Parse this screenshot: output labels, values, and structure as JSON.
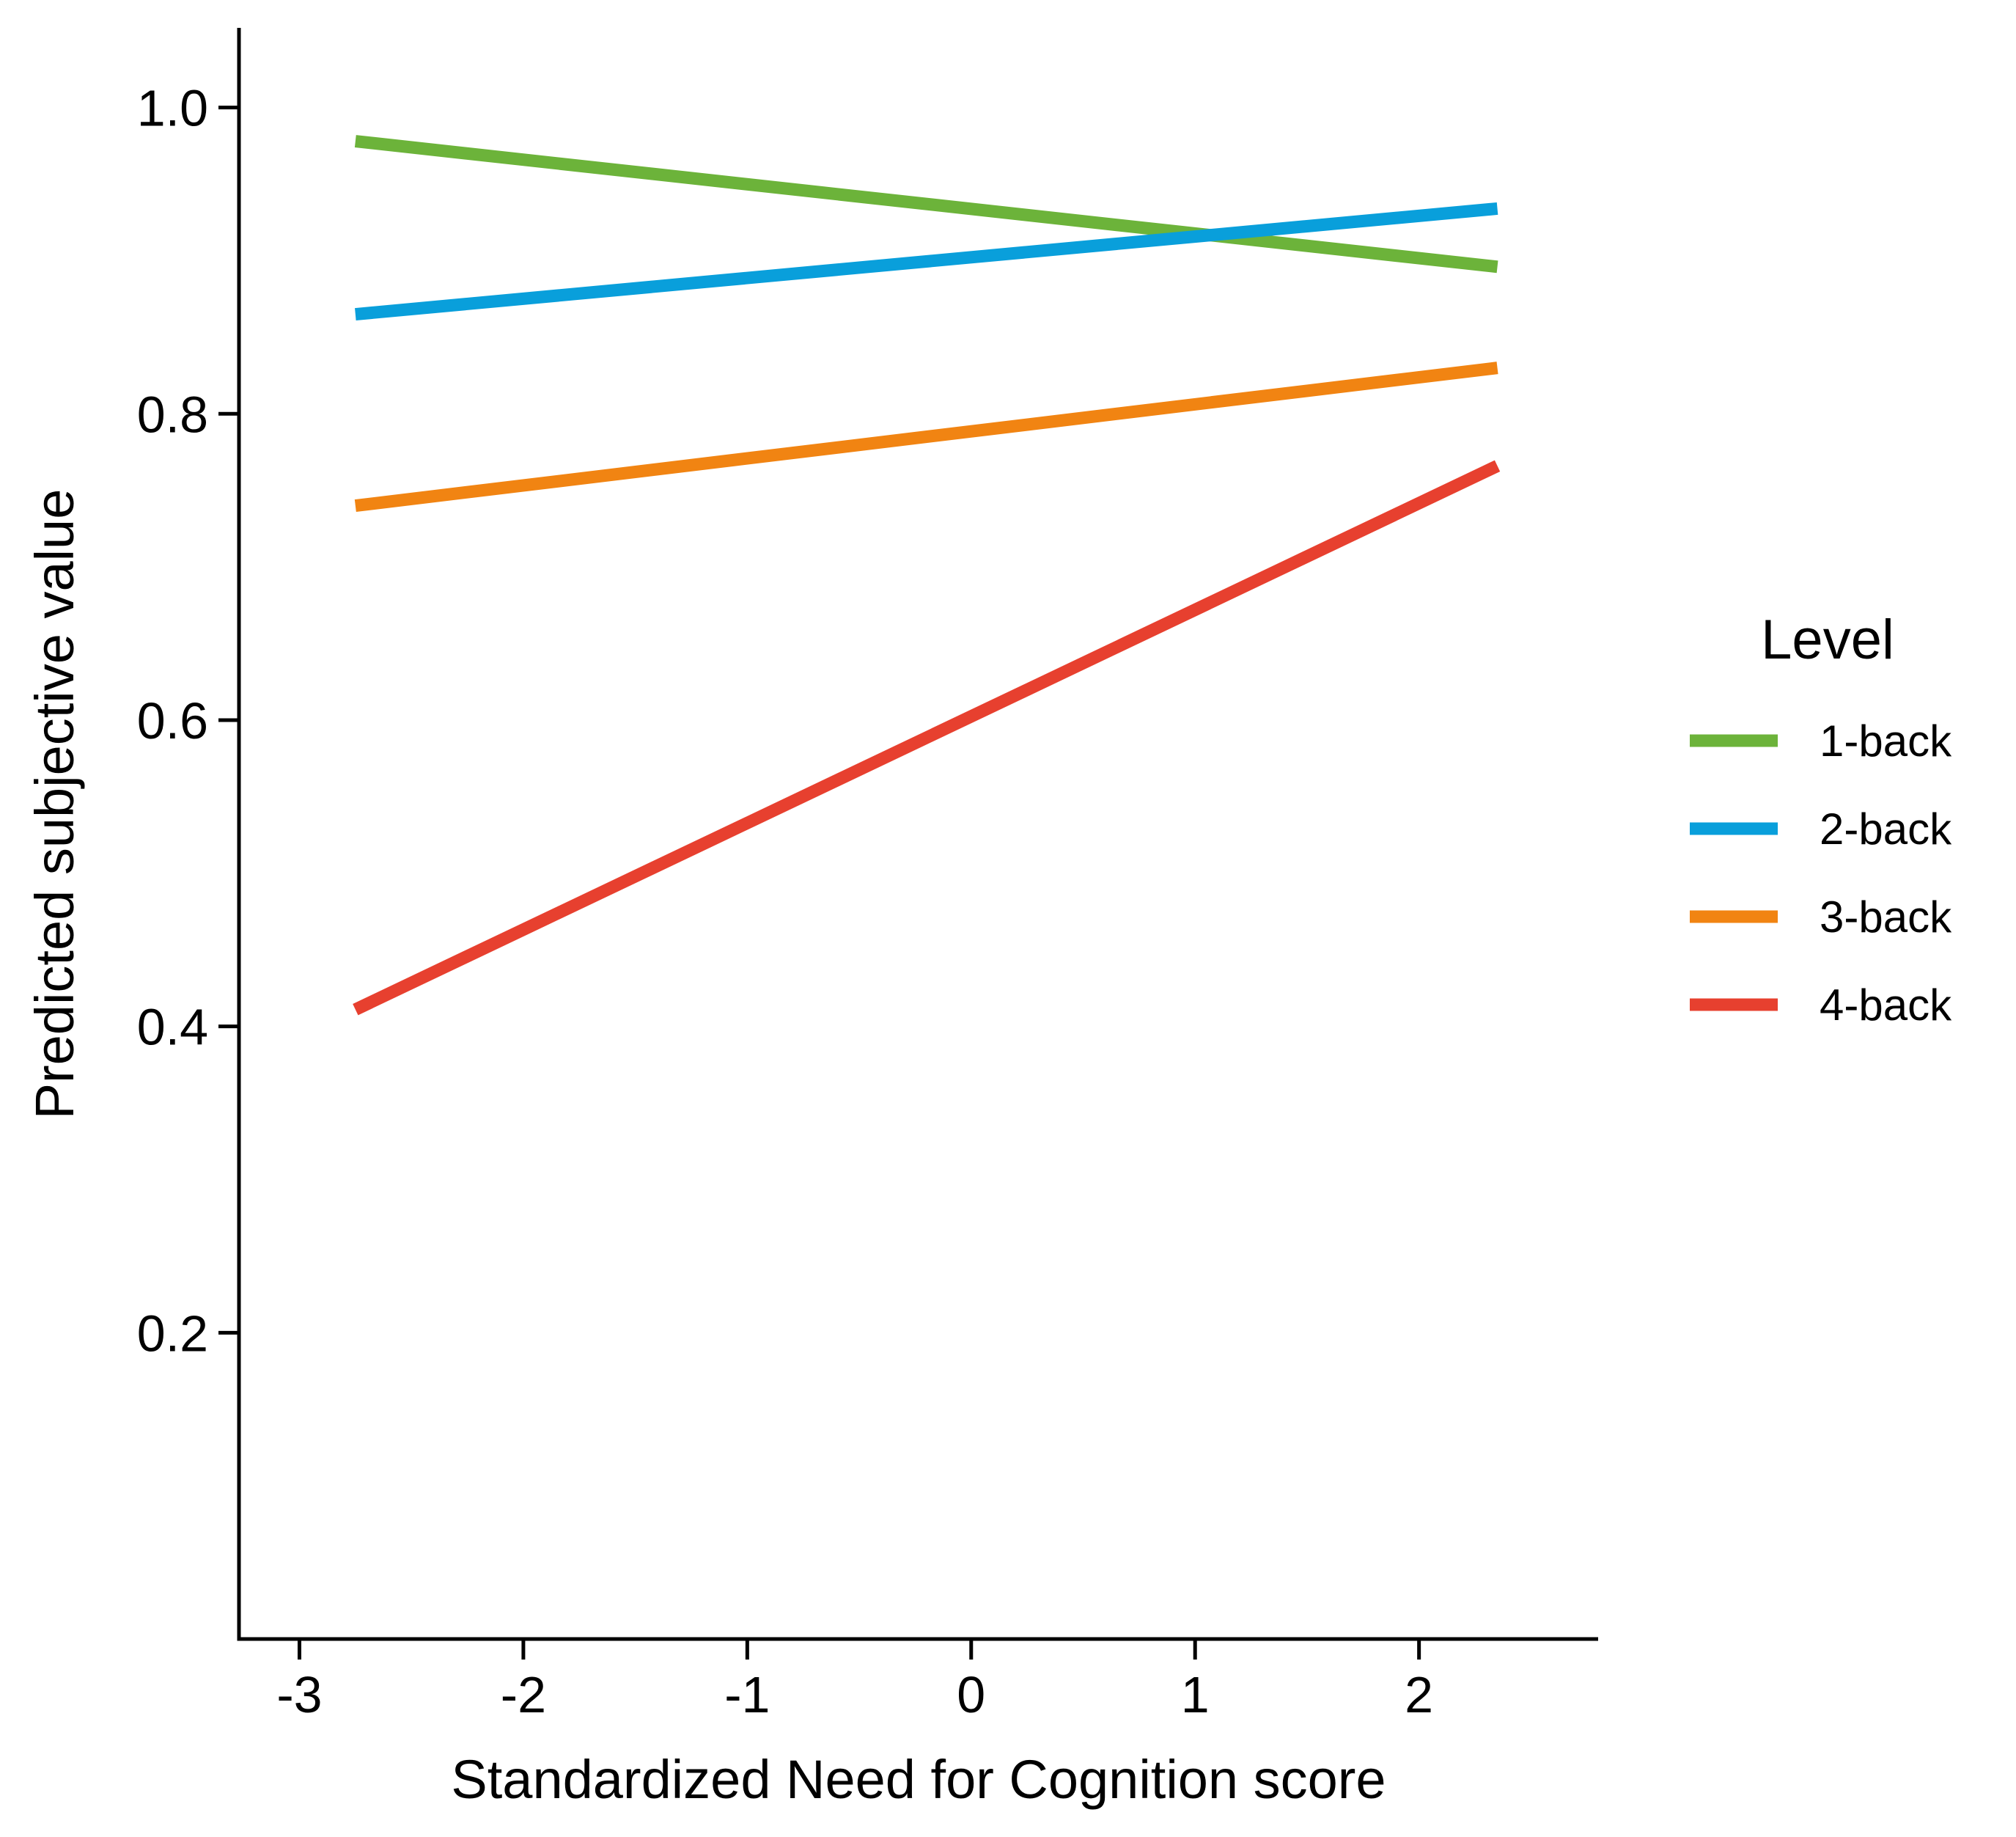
{
  "chart_data": {
    "type": "line",
    "title": "",
    "xlabel": "Standardized Need for Cognition score",
    "ylabel": "Predicted subjective value",
    "xlim": [
      -3.27,
      2.8
    ],
    "ylim": [
      0.0,
      1.052
    ],
    "xticks": [
      -3,
      -2,
      -1,
      0,
      1,
      2
    ],
    "xtick_labels": [
      "-3",
      "-2",
      "-1",
      "0",
      "1",
      "2"
    ],
    "yticks": [
      0.2,
      0.4,
      0.6,
      0.8,
      1.0
    ],
    "ytick_labels": [
      "0.2",
      "0.4",
      "0.6",
      "0.8",
      "1.0"
    ],
    "grid": false,
    "legend": {
      "title": "Level",
      "placement": "right"
    },
    "series": [
      {
        "name": "1-back",
        "color": "#6cb33a",
        "x": [
          -2.75,
          2.35
        ],
        "values": [
          0.978,
          0.896
        ]
      },
      {
        "name": "2-back",
        "color": "#099fdb",
        "x": [
          -2.75,
          2.35
        ],
        "values": [
          0.865,
          0.934
        ]
      },
      {
        "name": "3-back",
        "color": "#f18412",
        "x": [
          -2.75,
          2.35
        ],
        "values": [
          0.74,
          0.83
        ]
      },
      {
        "name": "4-back",
        "color": "#e7402f",
        "x": [
          -2.75,
          2.35
        ],
        "values": [
          0.411,
          0.766
        ]
      }
    ]
  }
}
